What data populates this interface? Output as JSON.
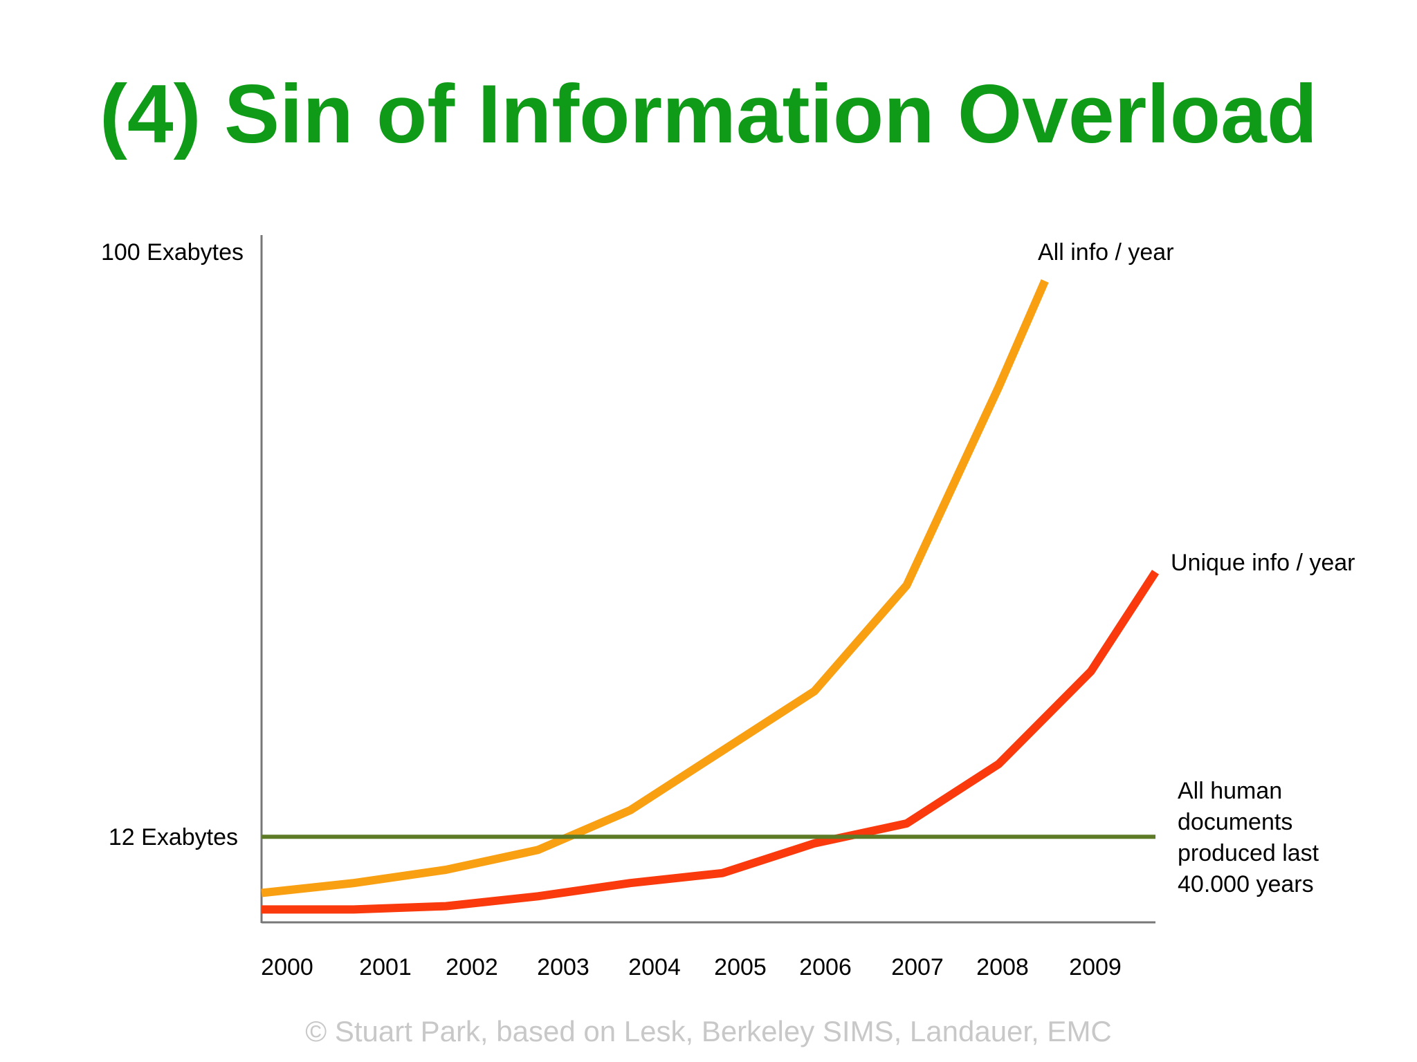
{
  "slide": {
    "title": "(4) Sin of Information Overload",
    "credit": "© Stuart Park, based on Lesk, Berkeley SIMS, Landauer, EMC"
  },
  "colors": {
    "title": "#0f9a17",
    "all_info": "#f99f12",
    "unique_info": "#fa3a0c",
    "human_docs": "#5d7a27",
    "axis": "#777777",
    "text": "#000000",
    "credit": "#c8c8c8"
  },
  "chart_data": {
    "type": "line",
    "title": "",
    "xlabel": "",
    "ylabel": "",
    "x_ticks": [
      "2000",
      "2001",
      "2002",
      "2003",
      "2004",
      "2005",
      "2006",
      "2007",
      "2008",
      "2009"
    ],
    "y_ticks": [
      {
        "value": 100,
        "label": "100 Exabytes"
      },
      {
        "value": 12,
        "label": "12 Exabytes"
      }
    ],
    "xlim": [
      2000,
      2009.7
    ],
    "ylim": [
      0,
      100
    ],
    "grid": false,
    "legend": "inline labels at line ends",
    "series": [
      {
        "name": "All info / year",
        "color": "#f99f12",
        "x": [
          2000,
          2001,
          2002,
          2003,
          2004,
          2005,
          2006,
          2007,
          2008,
          2008.5
        ],
        "y": [
          3.5,
          5,
          7,
          10,
          16,
          25,
          34,
          50,
          80,
          96
        ]
      },
      {
        "name": "Unique info / year",
        "color": "#fa3a0c",
        "x": [
          2000,
          2001,
          2002,
          2003,
          2004,
          2005,
          2006,
          2007,
          2008,
          2009,
          2009.7
        ],
        "y": [
          1,
          1,
          1.5,
          3,
          5,
          6.5,
          11,
          14,
          23,
          37,
          52
        ]
      },
      {
        "name": "All human documents produced last 40.000 years",
        "color": "#5d7a27",
        "x": [
          2000,
          2009.7
        ],
        "y": [
          12,
          12
        ]
      }
    ],
    "annotations": [
      {
        "text": "All info / year"
      },
      {
        "text": "Unique info / year"
      },
      {
        "text": [
          "All human",
          "documents",
          "produced last",
          "40.000 years"
        ]
      }
    ]
  }
}
